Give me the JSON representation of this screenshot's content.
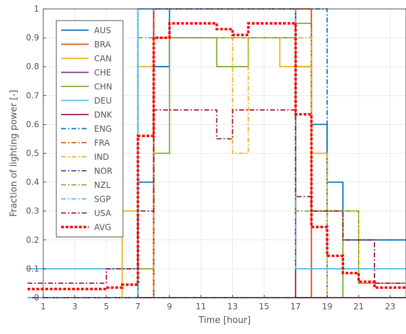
{
  "chart_data": {
    "type": "line",
    "step": true,
    "xlabel": "Time [hour]",
    "ylabel": "Fraction of lighting power [-]",
    "xlim": [
      1,
      24
    ],
    "ylim": [
      0,
      1
    ],
    "x_ticks": [
      "1",
      "3",
      "5",
      "7",
      "9",
      "11",
      "13",
      "15",
      "17",
      "19",
      "21",
      "23"
    ],
    "y_ticks": [
      "0",
      "0.1",
      "0.2",
      "0.3",
      "0.4",
      "0.5",
      "0.6",
      "0.7",
      "0.8",
      "0.9",
      "1"
    ],
    "legend_position": "top-left",
    "hours": [
      1,
      2,
      3,
      4,
      5,
      6,
      7,
      8,
      9,
      10,
      11,
      12,
      13,
      14,
      15,
      16,
      17,
      18,
      19,
      20,
      21,
      22,
      23,
      24
    ],
    "series": [
      {
        "name": "AUS",
        "color": "#0072BD",
        "dash": "solid",
        "values": [
          0,
          0,
          0,
          0,
          0,
          0,
          0,
          0.4,
          0.8,
          1,
          1,
          1,
          1,
          1,
          1,
          1,
          1,
          0.8,
          0.6,
          0.4,
          0.2,
          0.2,
          0.2,
          0.2
        ]
      },
      {
        "name": "BRA",
        "color": "#D95319",
        "dash": "solid",
        "values": [
          0,
          0,
          0,
          0,
          0,
          0,
          0,
          0,
          1,
          1,
          1,
          1,
          1,
          1,
          1,
          1,
          1,
          1,
          0,
          0,
          0,
          0,
          0,
          0
        ]
      },
      {
        "name": "CAN",
        "color": "#EDB120",
        "dash": "solid",
        "values": [
          0,
          0,
          0,
          0,
          0,
          0,
          0.3,
          0.8,
          0.9,
          0.9,
          0.9,
          0.9,
          0.9,
          0.9,
          0.9,
          0.9,
          0.8,
          0.8,
          0.5,
          0.3,
          0.3,
          0.05,
          0.05,
          0.05
        ]
      },
      {
        "name": "CHE",
        "color": "#7E2F8E",
        "dash": "solid",
        "values": [
          0,
          0,
          0,
          0,
          0,
          0,
          0,
          0,
          0,
          0,
          0,
          0,
          0,
          0,
          0,
          0,
          0,
          0,
          0,
          0,
          0,
          0,
          0,
          0
        ]
      },
      {
        "name": "CHN",
        "color": "#77AC30",
        "dash": "solid",
        "values": [
          0.1,
          0.1,
          0.1,
          0.1,
          0.1,
          0.1,
          0.1,
          0.1,
          0.5,
          0.9,
          0.9,
          0.9,
          0.8,
          0.8,
          0.9,
          0.9,
          0.9,
          0.95,
          0.3,
          0.3,
          0,
          0,
          0,
          0
        ]
      },
      {
        "name": "DEU",
        "color": "#4DBEEE",
        "dash": "solid",
        "values": [
          0.1,
          0.1,
          0.1,
          0.1,
          0.1,
          0.1,
          0.1,
          1,
          1,
          1,
          1,
          1,
          1,
          1,
          1,
          1,
          1,
          0.1,
          0.1,
          0.1,
          0.1,
          0.1,
          0.1,
          0.1
        ]
      },
      {
        "name": "DNK",
        "color": "#A2142F",
        "dash": "solid",
        "values": [
          0,
          0,
          0,
          0,
          0,
          0,
          0,
          0,
          1,
          1,
          1,
          1,
          1,
          1,
          1,
          1,
          1,
          0,
          0,
          0,
          0,
          0,
          0,
          0
        ]
      },
      {
        "name": "ENG",
        "color": "#0072BD",
        "dash": "dashdot",
        "values": [
          0,
          0,
          0,
          0,
          0,
          0,
          0,
          1,
          1,
          1,
          1,
          1,
          1,
          1,
          1,
          1,
          1,
          1,
          1,
          0,
          0,
          0,
          0,
          0
        ]
      },
      {
        "name": "FRA",
        "color": "#D95319",
        "dash": "dashdot",
        "values": [
          0,
          0,
          0,
          0,
          0,
          0,
          0,
          0,
          1,
          1,
          1,
          1,
          1,
          1,
          1,
          1,
          1,
          1,
          0,
          0,
          0,
          0,
          0,
          0
        ]
      },
      {
        "name": "IND",
        "color": "#EDB120",
        "dash": "dashdot",
        "values": [
          0,
          0,
          0,
          0,
          0,
          0,
          0,
          0,
          0.9,
          0.9,
          0.9,
          0.9,
          0.9,
          0.5,
          0.9,
          0.9,
          0.9,
          0.9,
          0.5,
          0,
          0,
          0,
          0,
          0
        ]
      },
      {
        "name": "NOR",
        "color": "#7E2F8E",
        "dash": "dashdot",
        "values": [
          0,
          0,
          0,
          0,
          0,
          0,
          0,
          0,
          0,
          0,
          0,
          0,
          0,
          0,
          0,
          0,
          0,
          0,
          0,
          0,
          0,
          0,
          0,
          0
        ]
      },
      {
        "name": "NZL",
        "color": "#77AC30",
        "dash": "dashdot",
        "values": [
          0,
          0,
          0,
          0,
          0,
          0,
          0,
          0.9,
          0.9,
          0.9,
          0.9,
          0.9,
          0.9,
          0.9,
          0.9,
          0.9,
          0.9,
          0.3,
          0.3,
          0.3,
          0.3,
          0.05,
          0.05,
          0.05
        ]
      },
      {
        "name": "SGP",
        "color": "#4DBEEE",
        "dash": "dashdot",
        "values": [
          0,
          0,
          0,
          0,
          0,
          0,
          0,
          1,
          1,
          1,
          1,
          1,
          1,
          1,
          1,
          1,
          1,
          0.1,
          0.1,
          0.1,
          0.1,
          0.1,
          0.1,
          0.1
        ]
      },
      {
        "name": "USA",
        "color": "#A2142F",
        "dash": "dashdot",
        "values": [
          0.05,
          0.05,
          0.05,
          0.05,
          0.05,
          0.1,
          0.1,
          0.3,
          0.65,
          0.65,
          0.65,
          0.65,
          0.55,
          0.65,
          0.65,
          0.65,
          0.65,
          0.35,
          0.3,
          0.3,
          0.2,
          0.2,
          0.05,
          0.05
        ]
      },
      {
        "name": "AVG",
        "color": "#FF0000",
        "dash": "dotted",
        "values": [
          0.03,
          0.03,
          0.03,
          0.03,
          0.03,
          0.035,
          0.045,
          0.56,
          0.9,
          0.95,
          0.95,
          0.95,
          0.93,
          0.91,
          0.95,
          0.95,
          0.95,
          0.635,
          0.245,
          0.145,
          0.085,
          0.055,
          0.035,
          0.035
        ]
      }
    ]
  }
}
